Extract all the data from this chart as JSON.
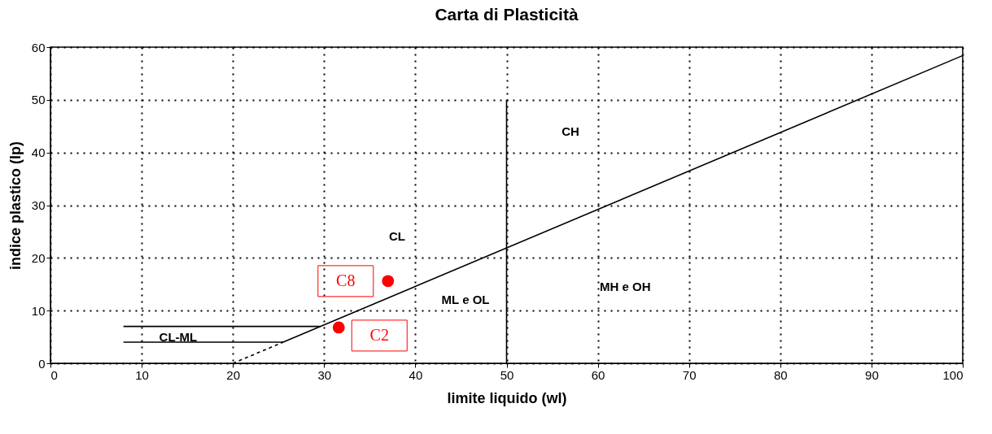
{
  "chart_data": {
    "type": "line",
    "title": "Carta di Plasticità",
    "xlabel": "limite liquido (wl)",
    "ylabel": "indice plastico (Ip)",
    "xlim": [
      0,
      100
    ],
    "ylim": [
      0,
      60
    ],
    "xticks": [
      0,
      10,
      20,
      30,
      40,
      50,
      60,
      70,
      80,
      90,
      100
    ],
    "yticks": [
      0,
      10,
      20,
      30,
      40,
      50,
      60
    ],
    "grid": true,
    "series": [
      {
        "color": "#000000",
        "x": [
          8,
          25.5,
          100
        ],
        "values": [
          4,
          4,
          58.4
        ]
      },
      {
        "color": "#000000",
        "x": [
          20,
          25.5
        ],
        "values": [
          0,
          4
        ],
        "line_style": "dashed"
      },
      {
        "color": "#000000",
        "x": [
          8,
          29.6
        ],
        "values": [
          7,
          7
        ]
      },
      {
        "color": "#000000",
        "x": [
          50,
          50
        ],
        "values": [
          0,
          50
        ]
      },
      {
        "type": "scatter",
        "color": "#ff0000",
        "marker": "circle",
        "x": [
          37,
          31.6
        ],
        "values": [
          15.6,
          6.8
        ],
        "value_labels": [
          "C8",
          "C2"
        ]
      }
    ],
    "annotations": [
      "CH",
      "CL",
      "ML e OL",
      "MH e OH",
      "CL-ML"
    ]
  }
}
